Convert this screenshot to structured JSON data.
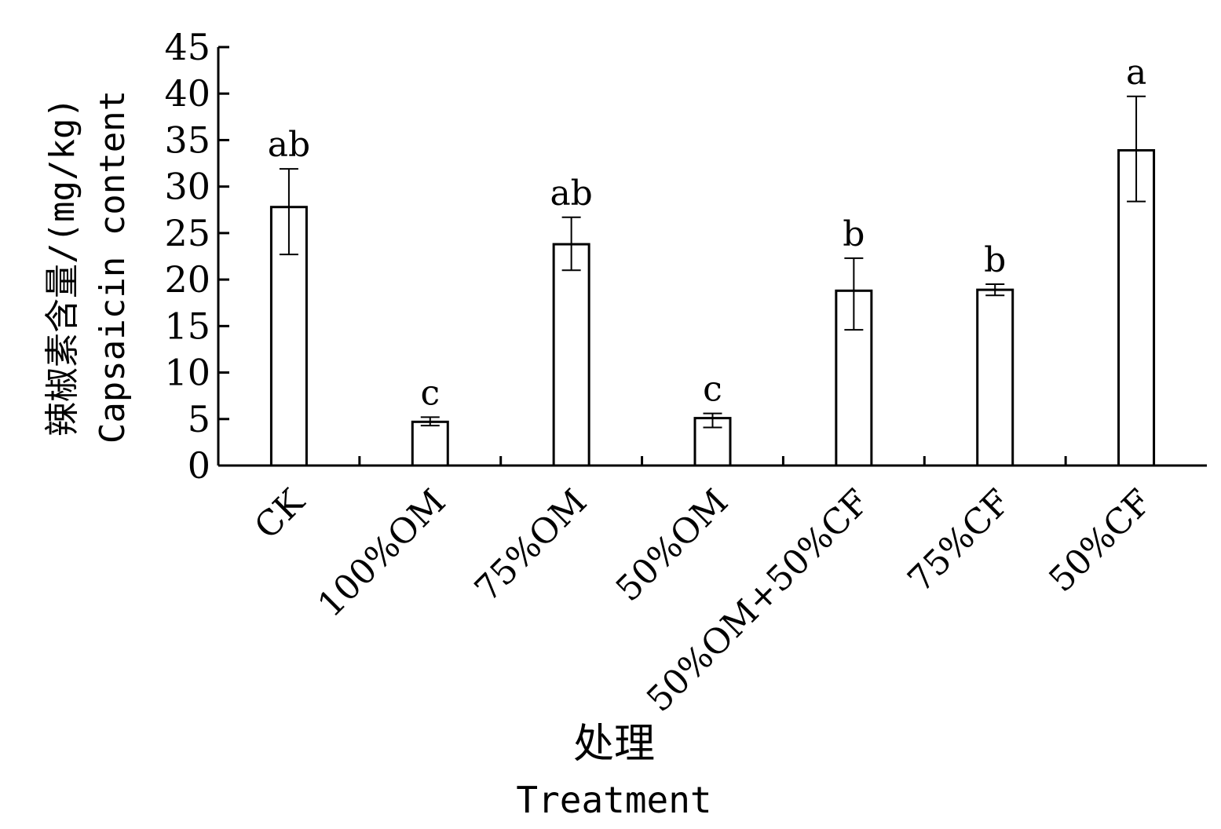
{
  "chart_data": {
    "type": "bar",
    "categories": [
      "CK",
      "100%OM",
      "75%OM",
      "50%OM",
      "50%OM+50%CF",
      "75%CF",
      "50%CF"
    ],
    "values": [
      27.8,
      4.7,
      23.8,
      5.1,
      18.8,
      18.9,
      33.9
    ],
    "error_upper": [
      31.9,
      5.2,
      26.7,
      5.6,
      22.3,
      19.5,
      39.7
    ],
    "error_lower": [
      22.7,
      4.3,
      21.0,
      4.1,
      14.6,
      18.3,
      28.4
    ],
    "significance": [
      "ab",
      "c",
      "ab",
      "c",
      "b",
      "b",
      "a"
    ],
    "ylim": [
      0,
      45
    ],
    "yticks": [
      0,
      5,
      10,
      15,
      20,
      25,
      30,
      35,
      40,
      45
    ],
    "ylabel_cn": "辣椒素含量/(mg/kg)",
    "ylabel_en": "Capsaicin content",
    "xlabel_cn": "处理",
    "xlabel_en": "Treatment",
    "grid": false,
    "legend": "none"
  }
}
